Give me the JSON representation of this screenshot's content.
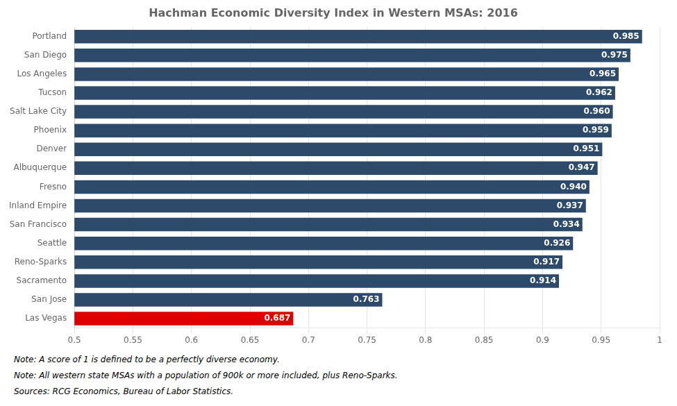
{
  "chart_data": {
    "type": "bar",
    "orientation": "horizontal",
    "title": "Hachman Economic Diversity Index in Western MSAs: 2016",
    "categories": [
      "Portland",
      "San Diego",
      "Los Angeles",
      "Tucson",
      "Salt Lake City",
      "Phoenix",
      "Denver",
      "Albuquerque",
      "Fresno",
      "Inland Empire",
      "San Francisco",
      "Seattle",
      "Reno-Sparks",
      "Sacramento",
      "San Jose",
      "Las Vegas"
    ],
    "values": [
      0.985,
      0.975,
      0.965,
      0.962,
      0.96,
      0.959,
      0.951,
      0.947,
      0.94,
      0.937,
      0.934,
      0.926,
      0.917,
      0.914,
      0.763,
      0.687
    ],
    "value_labels": [
      "0.985",
      "0.975",
      "0.965",
      "0.962",
      "0.960",
      "0.959",
      "0.951",
      "0.947",
      "0.940",
      "0.937",
      "0.934",
      "0.926",
      "0.917",
      "0.914",
      "0.763",
      "0.687"
    ],
    "colors": [
      "#2E4A6B",
      "#2E4A6B",
      "#2E4A6B",
      "#2E4A6B",
      "#2E4A6B",
      "#2E4A6B",
      "#2E4A6B",
      "#2E4A6B",
      "#2E4A6B",
      "#2E4A6B",
      "#2E4A6B",
      "#2E4A6B",
      "#2E4A6B",
      "#2E4A6B",
      "#2E4A6B",
      "#DD0000"
    ],
    "xlim": [
      0.5,
      1.0
    ],
    "xticks": [
      0.5,
      0.55,
      0.6,
      0.65,
      0.7,
      0.75,
      0.8,
      0.85,
      0.9,
      0.95,
      1.0
    ],
    "grid": "x",
    "data_labels": true,
    "annotations": [
      "Note: A score of 1 is defined to be a perfectly diverse economy.",
      "Note: All western state MSAs with a population of 900k or more included, plus Reno-Sparks.",
      "Sources: RCG Economics, Bureau of Labor Statistics."
    ]
  }
}
